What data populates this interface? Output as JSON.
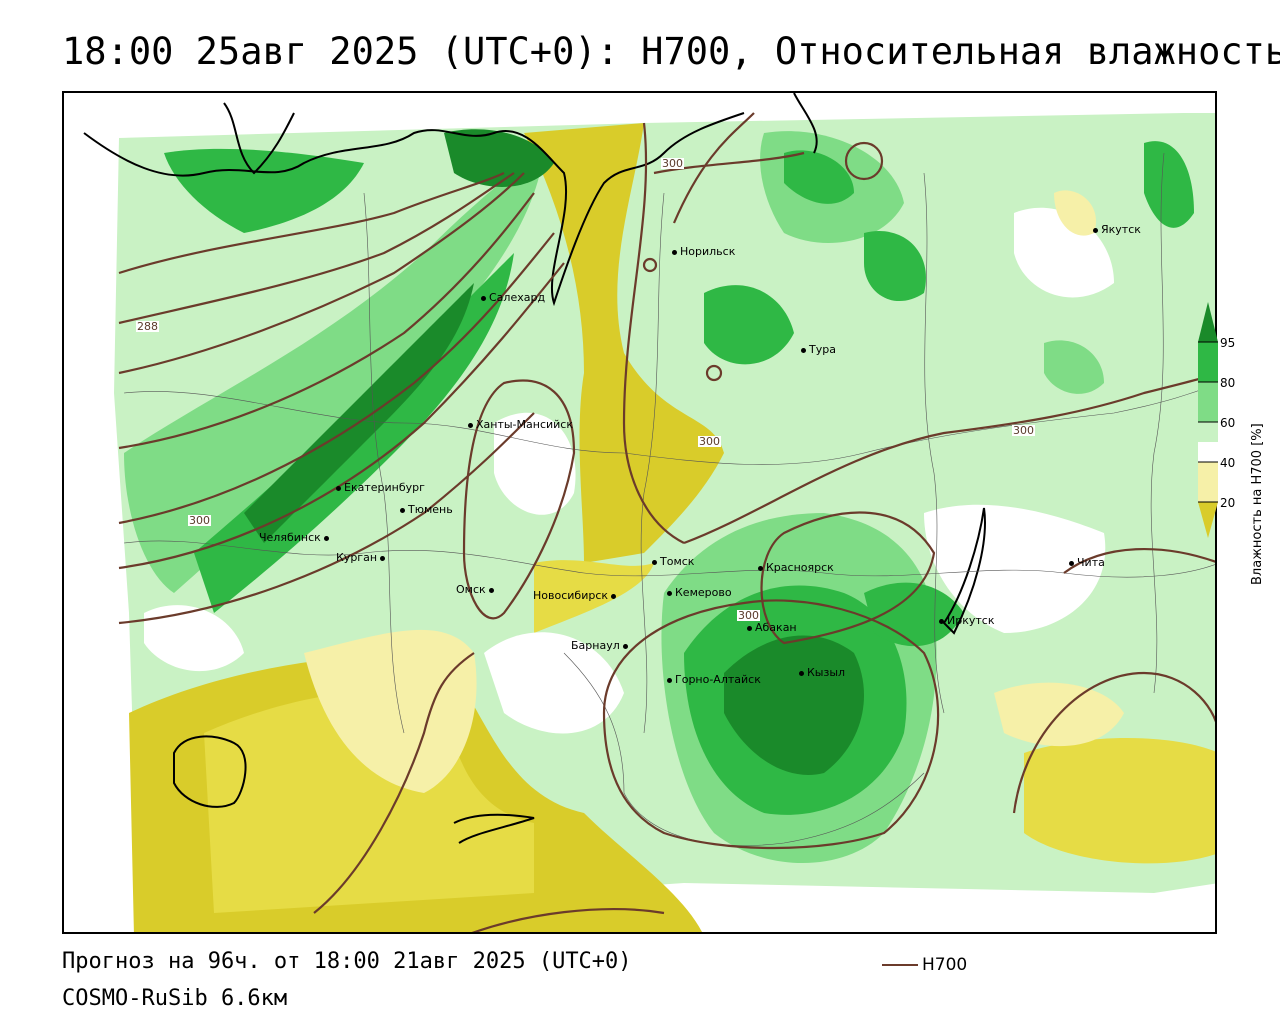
{
  "title": "18:00 25авг 2025 (UTC+0): Н700, Относительная влажность",
  "footer": {
    "forecast": "Прогноз на 96ч. от 18:00 21авг 2025 (UTC+0)",
    "model": "COSMO-RuSib 6.6км"
  },
  "legend": {
    "contour_label": "Н700",
    "contour_color": "#6b3b2b"
  },
  "colorbar": {
    "title": "Влажность на Н700 [%]",
    "ticks": [
      "95",
      "80",
      "60",
      "40",
      "20"
    ],
    "colors": {
      "above_95": "#1a8a2a",
      "80_95": "#2fb845",
      "60_80": "#7fdc86",
      "50_60": "#c9f2c4",
      "40_50": "#ffffff",
      "20_40": "#f6f0a8",
      "below_20": "#d9cc2a"
    }
  },
  "contour_labels": [
    "300",
    "288",
    "300",
    "300",
    "300",
    "300"
  ],
  "cities": [
    {
      "name": "Якутск"
    },
    {
      "name": "Норильск"
    },
    {
      "name": "Салехард"
    },
    {
      "name": "Тура"
    },
    {
      "name": "Ханты-Мансийск"
    },
    {
      "name": "Екатеринбург"
    },
    {
      "name": "Тюмень"
    },
    {
      "name": "Челябинск"
    },
    {
      "name": "Курган"
    },
    {
      "name": "Омск"
    },
    {
      "name": "Новосибирск"
    },
    {
      "name": "Томск"
    },
    {
      "name": "Кемерово"
    },
    {
      "name": "Красноярск"
    },
    {
      "name": "Абакан"
    },
    {
      "name": "Барнаул"
    },
    {
      "name": "Горно-Алтайск"
    },
    {
      "name": "Кызыл"
    },
    {
      "name": "Иркутск"
    },
    {
      "name": "Чита"
    }
  ]
}
